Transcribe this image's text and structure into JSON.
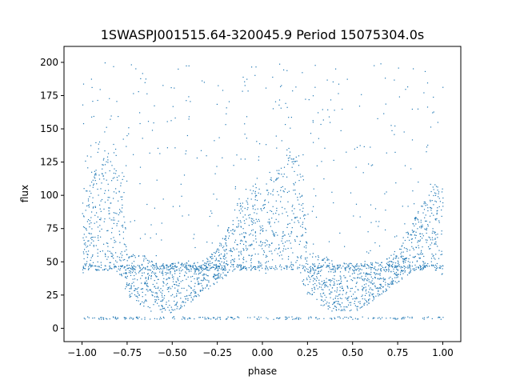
{
  "chart_data": {
    "type": "scatter",
    "title": "1SWASPJ001515.64-320045.9 Period 15075304.0s",
    "xlabel": "phase",
    "ylabel": "flux",
    "xlim": [
      -1.1,
      1.1
    ],
    "ylim": [
      -10,
      212
    ],
    "xticks": [
      "−1.00",
      "−0.75",
      "−0.50",
      "−0.25",
      "0.00",
      "0.25",
      "0.50",
      "0.75",
      "1.00"
    ],
    "yticks": [
      "0",
      "25",
      "50",
      "75",
      "100",
      "125",
      "150",
      "175",
      "200"
    ],
    "grid": false,
    "legend": "none",
    "marker_color": "#1f77b4",
    "series_note_phase_range": [
      -1.0,
      1.0
    ],
    "light_curve_profile": {
      "phase": [
        -1.0,
        -0.95,
        -0.9,
        -0.85,
        -0.8,
        -0.75,
        -0.7,
        -0.65,
        -0.6,
        -0.55,
        -0.5,
        -0.45,
        -0.4,
        -0.35,
        -0.3,
        -0.25,
        -0.2,
        -0.15,
        -0.1,
        -0.05,
        0.0,
        0.05,
        0.1,
        0.15,
        0.2,
        0.25,
        0.3,
        0.35,
        0.4,
        0.45,
        0.5,
        0.55,
        0.6,
        0.65,
        0.7,
        0.75,
        0.8,
        0.85,
        0.9,
        0.95,
        1.0
      ],
      "upper_flux": [
        105,
        115,
        125,
        135,
        130,
        60,
        55,
        55,
        50,
        50,
        50,
        50,
        50,
        50,
        55,
        60,
        75,
        85,
        100,
        110,
        105,
        115,
        125,
        135,
        130,
        60,
        55,
        55,
        50,
        50,
        50,
        50,
        50,
        50,
        55,
        60,
        75,
        85,
        100,
        110,
        105
      ],
      "lower_flux": [
        40,
        45,
        45,
        45,
        40,
        25,
        20,
        15,
        12,
        12,
        12,
        15,
        20,
        25,
        30,
        35,
        40,
        45,
        45,
        45,
        40,
        45,
        45,
        45,
        40,
        25,
        20,
        15,
        12,
        12,
        12,
        15,
        20,
        25,
        30,
        35,
        40,
        45,
        45,
        45,
        40
      ],
      "baseline_flux": 46
    }
  }
}
